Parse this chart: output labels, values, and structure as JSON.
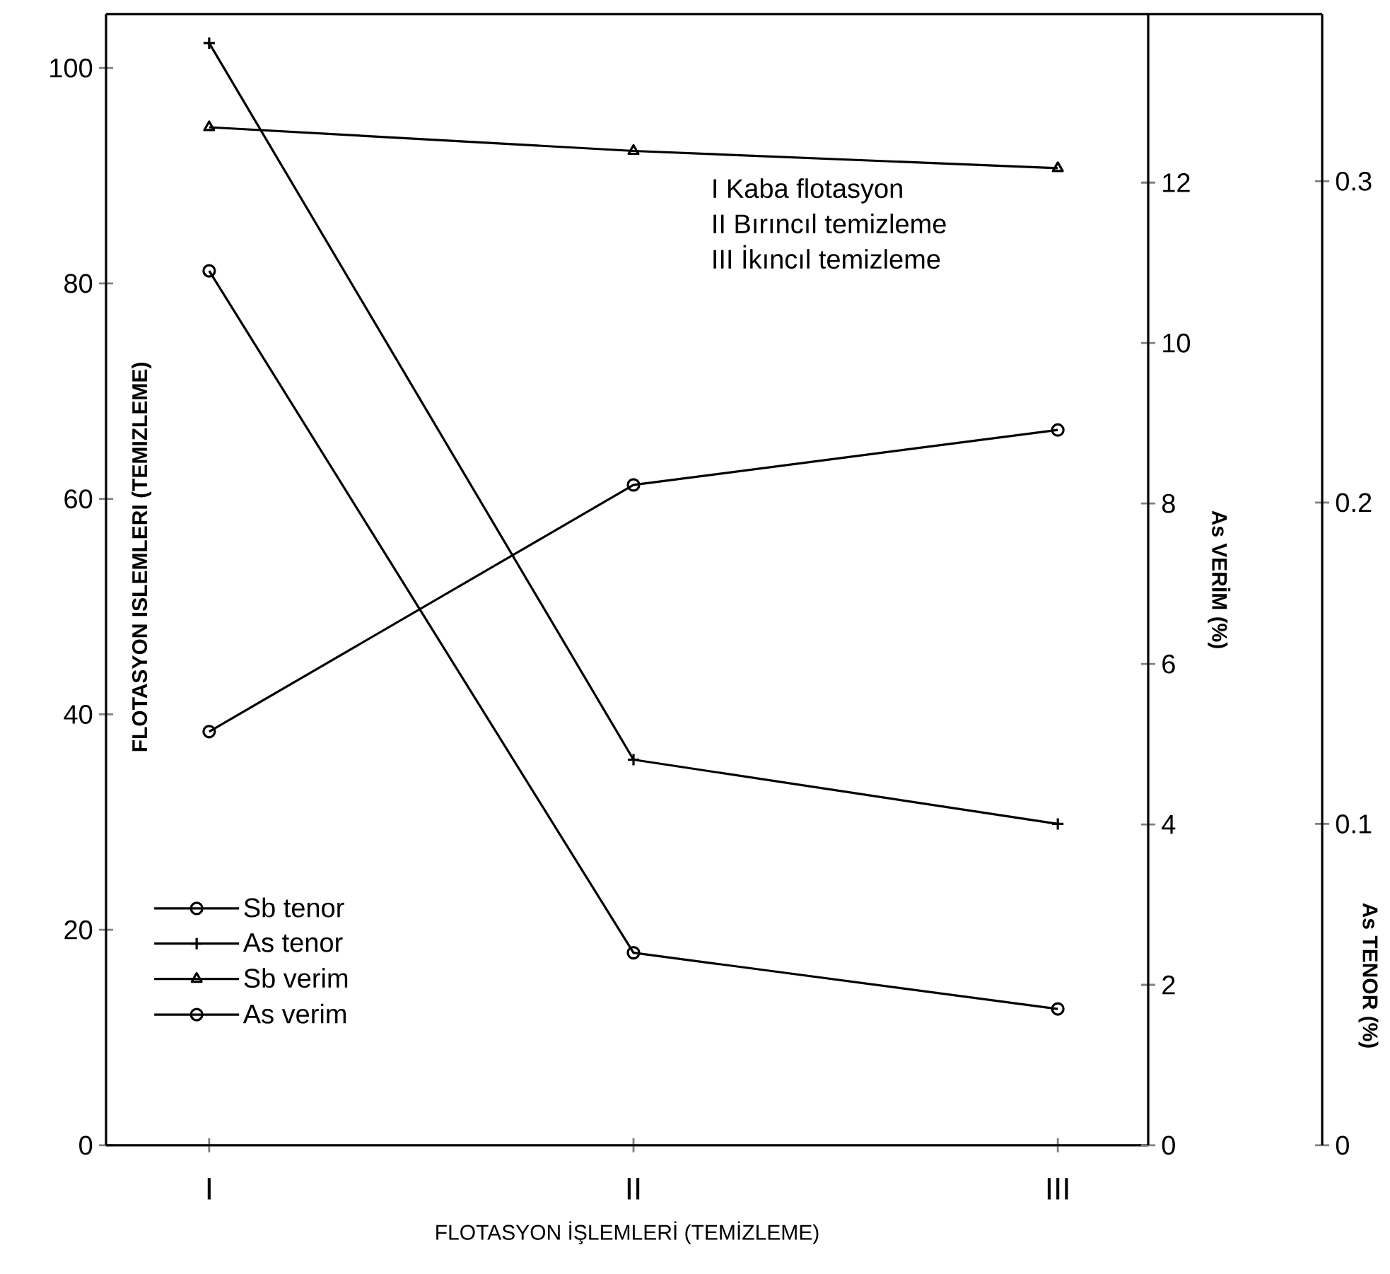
{
  "chart_data": {
    "type": "line",
    "xlabel": "FLOTASYON İŞLEMLERİ (TEMİZLEME)",
    "ylabel": "FLOTASYON ISLEMLERI (TEMIZLEME)",
    "y2label": "As VERİM (%)",
    "y3label": "As TENOR (%)",
    "categories": [
      "I",
      "II",
      "III"
    ],
    "series": [
      {
        "name": "Sb tenor",
        "color": "#000000",
        "marker": "circle",
        "values": [
          38.4,
          61.3,
          66.4
        ]
      },
      {
        "name": "As tenor",
        "color": "#000000",
        "marker": "cross",
        "axis": "y3",
        "values": [
          0.343,
          0.12,
          0.1
        ]
      },
      {
        "name": "Sb verim",
        "color": "#000000",
        "marker": "triangle",
        "values": [
          94.5,
          92.3,
          90.7
        ]
      },
      {
        "name": "As verim",
        "color": "#000000",
        "marker": "circle",
        "axis": "y2",
        "values": [
          10.9,
          2.4,
          1.7
        ]
      }
    ],
    "ylim": [
      0,
      105
    ],
    "yticks": [
      0,
      20,
      40,
      60,
      80,
      100
    ],
    "y2lim": [
      0,
      14.1
    ],
    "y2ticks": [
      0,
      2,
      4,
      6,
      8,
      10,
      12
    ],
    "y3lim": [
      0,
      0.352
    ],
    "y3ticks": [
      0,
      0.1,
      0.2,
      0.3
    ],
    "annotations": [
      "I Kaba flotasyon",
      "II Bırıncıl temizleme",
      "III İkıncıl temizleme"
    ],
    "legend": "bottom left",
    "grid": false
  }
}
